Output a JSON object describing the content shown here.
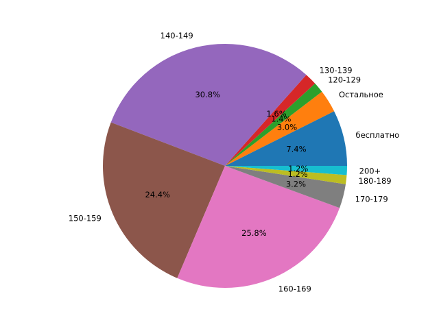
{
  "chart_data": {
    "type": "pie",
    "title": "",
    "start_angle_deg": 0,
    "direction": "counterclockwise",
    "slices": [
      {
        "label": "бесплатно",
        "value": 7.4,
        "pct_label": "7.4%",
        "color": "#1f77b4"
      },
      {
        "label": "Остальное",
        "value": 3.0,
        "pct_label": "3.0%",
        "color": "#ff7f0e"
      },
      {
        "label": "120-129",
        "value": 1.4,
        "pct_label": "1.4%",
        "color": "#2ca02c"
      },
      {
        "label": "130-139",
        "value": 1.6,
        "pct_label": "1.6%",
        "color": "#d62728"
      },
      {
        "label": "140-149",
        "value": 30.8,
        "pct_label": "30.8%",
        "color": "#9467bd"
      },
      {
        "label": "150-159",
        "value": 24.4,
        "pct_label": "24.4%",
        "color": "#8c564b"
      },
      {
        "label": "160-169",
        "value": 25.8,
        "pct_label": "25.8%",
        "color": "#e377c2"
      },
      {
        "label": "170-179",
        "value": 3.2,
        "pct_label": "3.2%",
        "color": "#7f7f7f"
      },
      {
        "label": "180-189",
        "value": 1.2,
        "pct_label": "1.2%",
        "color": "#bcbd22"
      },
      {
        "label": "200+",
        "value": 1.2,
        "pct_label": "1.2%",
        "color": "#17becf"
      }
    ]
  }
}
